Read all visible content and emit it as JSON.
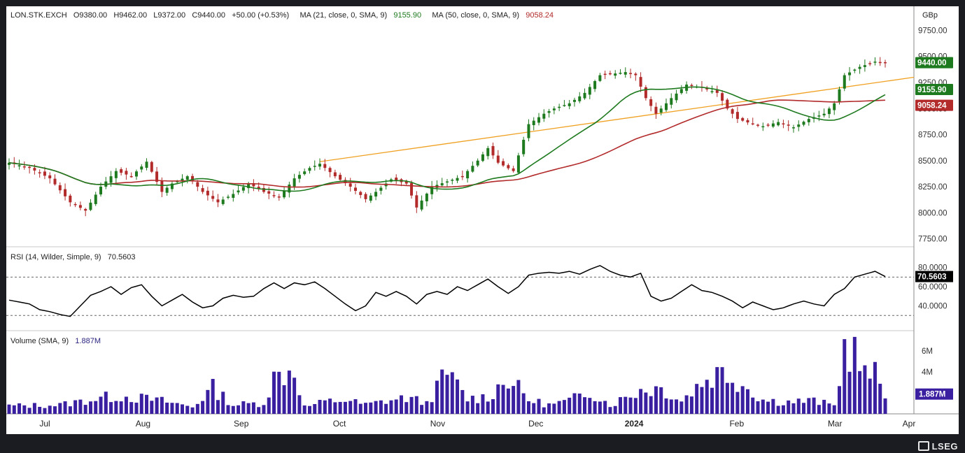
{
  "header": {
    "symbol": "LON.STK.EXCH",
    "open": "O9380.00",
    "high": "H9462.00",
    "low": "L9372.00",
    "close": "C9440.00",
    "change": "+50.00 (+0.53%)",
    "ma21_label": "MA (21, close, 0, SMA, 9)",
    "ma21_value": "9155.90",
    "ma50_label": "MA (50, close, 0, SMA, 9)",
    "ma50_value": "9058.24"
  },
  "currency": "GBp",
  "rsi_header": {
    "label": "RSI (14, Wilder, Simple, 9)",
    "value": "70.5603"
  },
  "volume_header": {
    "label": "Volume (SMA, 9)",
    "value": "1.887M"
  },
  "footer_logo": "LSEG",
  "colors": {
    "up": "#1e7a1e",
    "down": "#b22a2a",
    "ma21": "#1e7a1e",
    "ma50": "#b22a2a",
    "trendline": "#f0a020",
    "rsi": "#000000",
    "volume": "#3a1fa0",
    "last_price": "#1e7a1e"
  },
  "chart_data": [
    {
      "type": "candlestick",
      "title": "LON.STK.EXCH",
      "ylabel": "GBp",
      "ylim": [
        7700,
        9780
      ],
      "y_ticks": [
        "7750.00",
        "8000.00",
        "8250.00",
        "8500.00",
        "8750.00",
        "9000.00",
        "9250.00",
        "9500.00",
        "9750.00"
      ],
      "x_ticks": [
        "Jul",
        "Aug",
        "Sep",
        "Oct",
        "Nov",
        "Dec",
        "2024",
        "Feb",
        "Mar",
        "Apr"
      ],
      "last_price": "9440.00",
      "ma21_last": "9155.90",
      "ma50_last": "9058.24",
      "close_anchors": [
        [
          0,
          8480
        ],
        [
          4,
          8430
        ],
        [
          8,
          8330
        ],
        [
          12,
          8100
        ],
        [
          15,
          8020
        ],
        [
          18,
          8250
        ],
        [
          21,
          8400
        ],
        [
          24,
          8350
        ],
        [
          27,
          8490
        ],
        [
          30,
          8200
        ],
        [
          32,
          8280
        ],
        [
          35,
          8350
        ],
        [
          38,
          8200
        ],
        [
          41,
          8100
        ],
        [
          44,
          8180
        ],
        [
          47,
          8280
        ],
        [
          50,
          8200
        ],
        [
          53,
          8150
        ],
        [
          56,
          8330
        ],
        [
          59,
          8430
        ],
        [
          61,
          8470
        ],
        [
          64,
          8350
        ],
        [
          67,
          8250
        ],
        [
          70,
          8130
        ],
        [
          72,
          8200
        ],
        [
          75,
          8320
        ],
        [
          78,
          8280
        ],
        [
          80,
          8050
        ],
        [
          83,
          8250
        ],
        [
          86,
          8300
        ],
        [
          89,
          8350
        ],
        [
          92,
          8500
        ],
        [
          94,
          8620
        ],
        [
          96,
          8480
        ],
        [
          99,
          8400
        ],
        [
          102,
          8850
        ],
        [
          105,
          8950
        ],
        [
          107,
          9000
        ],
        [
          110,
          9050
        ],
        [
          113,
          9150
        ],
        [
          116,
          9320
        ],
        [
          118,
          9330
        ],
        [
          121,
          9350
        ],
        [
          123,
          9320
        ],
        [
          125,
          9100
        ],
        [
          127,
          8950
        ],
        [
          130,
          9100
        ],
        [
          133,
          9230
        ],
        [
          136,
          9200
        ],
        [
          139,
          9150
        ],
        [
          141,
          9000
        ],
        [
          143,
          8900
        ],
        [
          146,
          8850
        ],
        [
          148,
          8830
        ],
        [
          151,
          8870
        ],
        [
          154,
          8820
        ],
        [
          157,
          8900
        ],
        [
          160,
          8950
        ],
        [
          162,
          9050
        ],
        [
          164,
          9320
        ],
        [
          167,
          9400
        ],
        [
          170,
          9450
        ],
        [
          172,
          9440
        ]
      ],
      "volume_sma": "1.887M"
    },
    {
      "type": "line",
      "title": "RSI (14, Wilder, Simple, 9)",
      "ylim": [
        20,
        87
      ],
      "y_ticks": [
        "40.0000",
        "60.0000",
        "80.0000"
      ],
      "reference_lines": [
        70,
        30
      ],
      "last_value": "70.5603",
      "anchors": [
        [
          0,
          46
        ],
        [
          4,
          42
        ],
        [
          6,
          36
        ],
        [
          8,
          34
        ],
        [
          10,
          31
        ],
        [
          12,
          29
        ],
        [
          14,
          40
        ],
        [
          16,
          51
        ],
        [
          18,
          55
        ],
        [
          20,
          60
        ],
        [
          22,
          52
        ],
        [
          24,
          59
        ],
        [
          26,
          62
        ],
        [
          28,
          50
        ],
        [
          30,
          40
        ],
        [
          32,
          46
        ],
        [
          34,
          52
        ],
        [
          36,
          44
        ],
        [
          38,
          38
        ],
        [
          40,
          40
        ],
        [
          42,
          48
        ],
        [
          44,
          51
        ],
        [
          46,
          49
        ],
        [
          48,
          50
        ],
        [
          50,
          58
        ],
        [
          52,
          64
        ],
        [
          54,
          58
        ],
        [
          56,
          64
        ],
        [
          58,
          62
        ],
        [
          60,
          65
        ],
        [
          62,
          58
        ],
        [
          64,
          50
        ],
        [
          66,
          42
        ],
        [
          68,
          35
        ],
        [
          70,
          40
        ],
        [
          72,
          54
        ],
        [
          74,
          50
        ],
        [
          76,
          55
        ],
        [
          78,
          50
        ],
        [
          80,
          42
        ],
        [
          82,
          52
        ],
        [
          84,
          55
        ],
        [
          86,
          52
        ],
        [
          88,
          60
        ],
        [
          90,
          56
        ],
        [
          92,
          62
        ],
        [
          94,
          68
        ],
        [
          96,
          60
        ],
        [
          98,
          53
        ],
        [
          100,
          60
        ],
        [
          102,
          72
        ],
        [
          104,
          74
        ],
        [
          106,
          75
        ],
        [
          108,
          74
        ],
        [
          110,
          76
        ],
        [
          112,
          73
        ],
        [
          114,
          78
        ],
        [
          116,
          82
        ],
        [
          118,
          76
        ],
        [
          120,
          72
        ],
        [
          122,
          70
        ],
        [
          124,
          74
        ],
        [
          126,
          50
        ],
        [
          128,
          45
        ],
        [
          130,
          48
        ],
        [
          132,
          55
        ],
        [
          134,
          62
        ],
        [
          136,
          56
        ],
        [
          138,
          54
        ],
        [
          140,
          50
        ],
        [
          142,
          45
        ],
        [
          144,
          38
        ],
        [
          146,
          44
        ],
        [
          148,
          40
        ],
        [
          150,
          36
        ],
        [
          152,
          38
        ],
        [
          154,
          42
        ],
        [
          156,
          45
        ],
        [
          158,
          42
        ],
        [
          160,
          40
        ],
        [
          162,
          52
        ],
        [
          164,
          58
        ],
        [
          166,
          70
        ],
        [
          168,
          73
        ],
        [
          170,
          76
        ],
        [
          172,
          70.5603
        ]
      ]
    },
    {
      "type": "bar",
      "title": "Volume (SMA, 9)",
      "ylim": [
        0,
        7000000
      ],
      "y_ticks": [
        "4M",
        "6M"
      ],
      "last_value": "1.887M",
      "anchors": [
        [
          0,
          0.8
        ],
        [
          10,
          0.9
        ],
        [
          18,
          1.6
        ],
        [
          22,
          1.8
        ],
        [
          30,
          1.3
        ],
        [
          36,
          0.7
        ],
        [
          40,
          2.6
        ],
        [
          44,
          0.9
        ],
        [
          50,
          1.1
        ],
        [
          52,
          3.6
        ],
        [
          56,
          4.5
        ],
        [
          58,
          0.7
        ],
        [
          62,
          1.2
        ],
        [
          66,
          1.4
        ],
        [
          70,
          0.9
        ],
        [
          74,
          1.3
        ],
        [
          78,
          1.6
        ],
        [
          82,
          1.1
        ],
        [
          86,
          4.1
        ],
        [
          90,
          1.5
        ],
        [
          94,
          1.7
        ],
        [
          98,
          3.6
        ],
        [
          102,
          1.4
        ],
        [
          106,
          0.9
        ],
        [
          110,
          1.3
        ],
        [
          114,
          2.3
        ],
        [
          118,
          0.9
        ],
        [
          124,
          2.4
        ],
        [
          128,
          2.6
        ],
        [
          132,
          1.3
        ],
        [
          136,
          3.2
        ],
        [
          140,
          4.3
        ],
        [
          144,
          3.0
        ],
        [
          148,
          1.4
        ],
        [
          152,
          1.2
        ],
        [
          158,
          1.3
        ],
        [
          162,
          0.8
        ],
        [
          164,
          6.6
        ],
        [
          166,
          6.2
        ],
        [
          168,
          3.8
        ],
        [
          170,
          3.9
        ],
        [
          172,
          1.9
        ]
      ]
    }
  ]
}
